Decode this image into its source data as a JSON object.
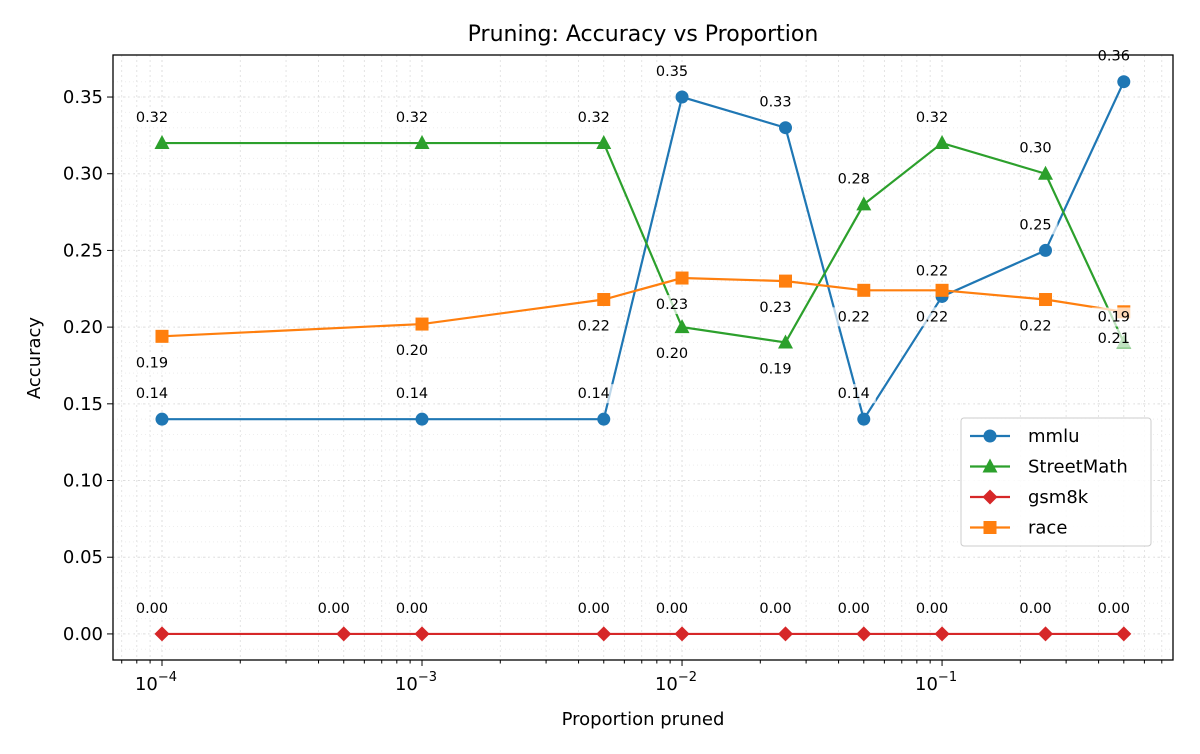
{
  "chart_data": {
    "type": "line",
    "title": "Pruning: Accuracy vs Proportion",
    "xlabel": "Proportion pruned",
    "ylabel": "Accuracy",
    "xscale": "log",
    "xlim": [
      6.48e-05,
      0.773
    ],
    "ylim": [
      -0.017,
      0.3774
    ],
    "xticks": [
      {
        "v": 0.0001,
        "base": "10",
        "exp": "−4"
      },
      {
        "v": 0.001,
        "base": "10",
        "exp": "−3"
      },
      {
        "v": 0.01,
        "base": "10",
        "exp": "−2"
      },
      {
        "v": 0.1,
        "base": "10",
        "exp": "−1"
      }
    ],
    "yticks": [
      "0.00",
      "0.05",
      "0.10",
      "0.15",
      "0.20",
      "0.25",
      "0.30",
      "0.35"
    ],
    "grid": true,
    "legend_position": "lower-right",
    "series": [
      {
        "name": "mmlu",
        "color": "#1f77b4",
        "marker": "circle",
        "label_pos": "above",
        "x": [
          0.0001,
          0.001,
          0.005,
          0.01,
          0.025,
          0.05,
          0.1,
          0.25,
          0.5
        ],
        "y": [
          0.14,
          0.14,
          0.14,
          0.35,
          0.33,
          0.14,
          0.22,
          0.25,
          0.36
        ],
        "labels": [
          "0.14",
          "0.14",
          "0.14",
          "0.35",
          "0.33",
          "0.14",
          "0.22",
          "0.25",
          "0.36"
        ]
      },
      {
        "name": "StreetMath",
        "color": "#2ca02c",
        "marker": "triangle",
        "label_pos": "above",
        "x": [
          0.0001,
          0.001,
          0.005,
          0.01,
          0.025,
          0.05,
          0.1,
          0.25,
          0.5
        ],
        "y": [
          0.32,
          0.32,
          0.32,
          0.2,
          0.19,
          0.28,
          0.32,
          0.3,
          0.19
        ],
        "labels": [
          "0.32",
          "0.32",
          "0.32",
          "0.20",
          "0.19",
          "0.28",
          "0.32",
          "0.30",
          "0.19"
        ]
      },
      {
        "name": "gsm8k",
        "color": "#d62728",
        "marker": "diamond",
        "label_pos": "above",
        "x": [
          0.0001,
          0.0005,
          0.001,
          0.005,
          0.01,
          0.025,
          0.05,
          0.1,
          0.25,
          0.5
        ],
        "y": [
          0,
          0,
          0,
          0,
          0,
          0,
          0,
          0,
          0,
          0
        ],
        "labels": [
          "0.00",
          "0.00",
          "0.00",
          "0.00",
          "0.00",
          "0.00",
          "0.00",
          "0.00",
          "0.00",
          "0.00"
        ]
      },
      {
        "name": "race",
        "color": "#ff7f0e",
        "marker": "square",
        "label_pos": "below",
        "x": [
          0.0001,
          0.001,
          0.005,
          0.01,
          0.025,
          0.05,
          0.1,
          0.25,
          0.5
        ],
        "y": [
          0.194,
          0.202,
          0.218,
          0.232,
          0.23,
          0.224,
          0.224,
          0.218,
          0.21
        ],
        "labels": [
          "0.19",
          "0.20",
          "0.22",
          "0.23",
          "0.23",
          "0.22",
          "0.22",
          "0.22",
          "0.21"
        ]
      }
    ]
  }
}
